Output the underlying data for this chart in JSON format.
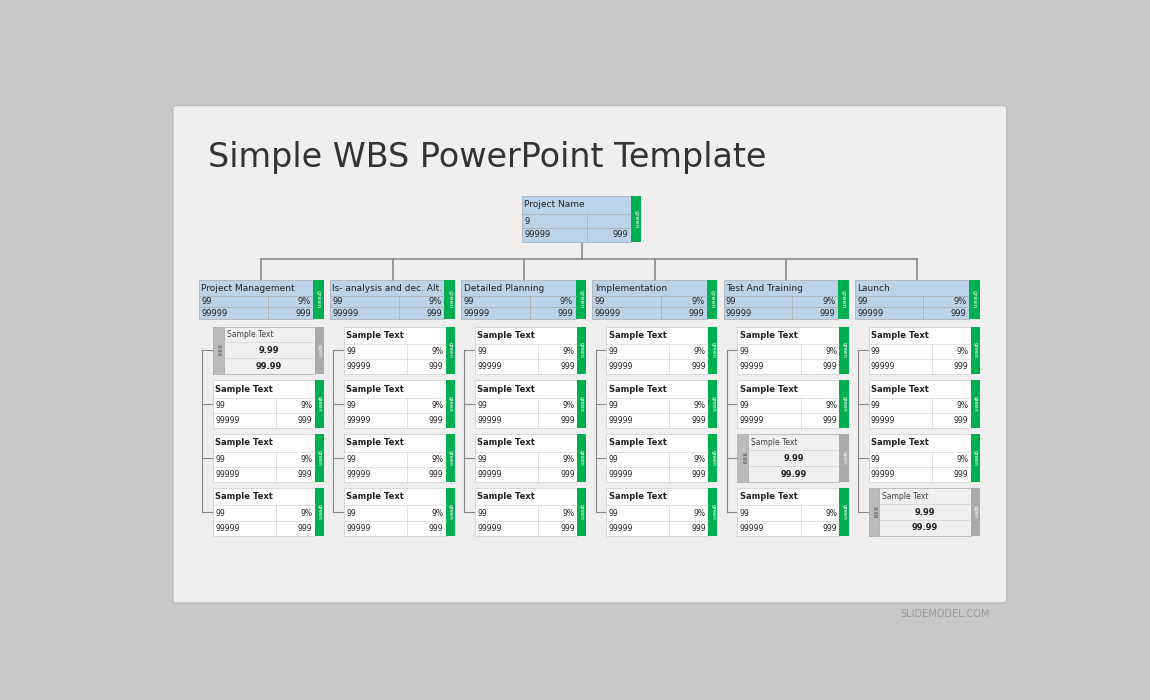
{
  "title": "Simple WBS PowerPoint Template",
  "outer_bg": "#c8c8c8",
  "slide_bg": "#efefef",
  "title_color": "#333333",
  "title_fontsize": 24,
  "root_box": {
    "title": "Project Name",
    "row1_left": "9",
    "row1_right": "",
    "row2_left": "99999",
    "row2_right": "999",
    "bg": "#bad3e8",
    "tag_color": "#00b050"
  },
  "columns": [
    {
      "title": "Project Management",
      "row1_left": "99",
      "row1_right": "9%",
      "row2_left": "99999",
      "row2_right": "999",
      "bg": "#bad3e8",
      "tag_color": "#00b050"
    },
    {
      "title": "Is- analysis and dec. Alt.",
      "row1_left": "99",
      "row1_right": "9%",
      "row2_left": "99999",
      "row2_right": "999",
      "bg": "#bad3e8",
      "tag_color": "#00b050"
    },
    {
      "title": "Detailed Planning",
      "row1_left": "99",
      "row1_right": "9%",
      "row2_left": "99999",
      "row2_right": "999",
      "bg": "#bad3e8",
      "tag_color": "#00b050"
    },
    {
      "title": "Implementation",
      "row1_left": "99",
      "row1_right": "9%",
      "row2_left": "99999",
      "row2_right": "999",
      "bg": "#bad3e8",
      "tag_color": "#00b050"
    },
    {
      "title": "Test And Training",
      "row1_left": "99",
      "row1_right": "9%",
      "row2_left": "99999",
      "row2_right": "999",
      "bg": "#bad3e8",
      "tag_color": "#00b050"
    },
    {
      "title": "Launch",
      "row1_left": "99",
      "row1_right": "9%",
      "row2_left": "99999",
      "row2_right": "999",
      "bg": "#bad3e8",
      "tag_color": "#00b050"
    }
  ],
  "child_rows": [
    [
      {
        "type": "open",
        "title": "Sample Text",
        "val1": "9.99",
        "val2": "99.99",
        "side_label": "9.99",
        "bg": "#d9d9d9"
      },
      {
        "type": "green",
        "title": "Sample Text",
        "row1_left": "99",
        "row1_right": "9%",
        "row2_left": "99999",
        "row2_right": "999"
      },
      {
        "type": "green",
        "title": "Sample Text",
        "row1_left": "99",
        "row1_right": "9%",
        "row2_left": "99999",
        "row2_right": "999"
      },
      {
        "type": "green",
        "title": "Sample Text",
        "row1_left": "99",
        "row1_right": "9%",
        "row2_left": "99999",
        "row2_right": "999"
      },
      {
        "type": "green",
        "title": "Sample Text",
        "row1_left": "99",
        "row1_right": "9%",
        "row2_left": "99999",
        "row2_right": "999"
      },
      {
        "type": "green",
        "title": "Sample Text",
        "row1_left": "99",
        "row1_right": "9%",
        "row2_left": "99999",
        "row2_right": "999"
      }
    ],
    [
      {
        "type": "green",
        "title": "Sample Text",
        "row1_left": "99",
        "row1_right": "9%",
        "row2_left": "99999",
        "row2_right": "999"
      },
      {
        "type": "green",
        "title": "Sample Text",
        "row1_left": "99",
        "row1_right": "9%",
        "row2_left": "99999",
        "row2_right": "999"
      },
      {
        "type": "green",
        "title": "Sample Text",
        "row1_left": "99",
        "row1_right": "9%",
        "row2_left": "99999",
        "row2_right": "999"
      },
      {
        "type": "green",
        "title": "Sample Text",
        "row1_left": "99",
        "row1_right": "9%",
        "row2_left": "99999",
        "row2_right": "999"
      },
      {
        "type": "green",
        "title": "Sample Text",
        "row1_left": "99",
        "row1_right": "9%",
        "row2_left": "99999",
        "row2_right": "999"
      },
      {
        "type": "green",
        "title": "Sample Text",
        "row1_left": "99",
        "row1_right": "9%",
        "row2_left": "99999",
        "row2_right": "999"
      }
    ],
    [
      {
        "type": "green",
        "title": "Sample Text",
        "row1_left": "99",
        "row1_right": "9%",
        "row2_left": "99999",
        "row2_right": "999"
      },
      {
        "type": "green",
        "title": "Sample Text",
        "row1_left": "99",
        "row1_right": "9%",
        "row2_left": "99999",
        "row2_right": "999"
      },
      {
        "type": "green",
        "title": "Sample Text",
        "row1_left": "99",
        "row1_right": "9%",
        "row2_left": "99999",
        "row2_right": "999"
      },
      {
        "type": "green",
        "title": "Sample Text",
        "row1_left": "99",
        "row1_right": "9%",
        "row2_left": "99999",
        "row2_right": "999"
      },
      {
        "type": "open",
        "title": "Sample Text",
        "val1": "9.99",
        "val2": "99.99",
        "side_label": "9.99",
        "bg": "#d9d9d9"
      },
      {
        "type": "green",
        "title": "Sample Text",
        "row1_left": "99",
        "row1_right": "9%",
        "row2_left": "99999",
        "row2_right": "999"
      }
    ],
    [
      {
        "type": "green",
        "title": "Sample Text",
        "row1_left": "99",
        "row1_right": "9%",
        "row2_left": "99999",
        "row2_right": "999"
      },
      {
        "type": "green",
        "title": "Sample Text",
        "row1_left": "99",
        "row1_right": "9%",
        "row2_left": "99999",
        "row2_right": "999"
      },
      {
        "type": "green",
        "title": "Sample Text",
        "row1_left": "99",
        "row1_right": "9%",
        "row2_left": "99999",
        "row2_right": "999"
      },
      {
        "type": "green",
        "title": "Sample Text",
        "row1_left": "99",
        "row1_right": "9%",
        "row2_left": "99999",
        "row2_right": "999"
      },
      {
        "type": "green",
        "title": "Sample Text",
        "row1_left": "99",
        "row1_right": "9%",
        "row2_left": "99999",
        "row2_right": "999"
      },
      {
        "type": "open",
        "title": "Sample Text",
        "val1": "9.99",
        "val2": "99.99",
        "side_label": "9.99",
        "bg": "#d9d9d9"
      }
    ]
  ],
  "footer": "SLIDEMODEL.COM",
  "footer_color": "#999999",
  "line_color": "#888888",
  "green_tag": "#00b050",
  "gray_tag": "#aaaaaa"
}
